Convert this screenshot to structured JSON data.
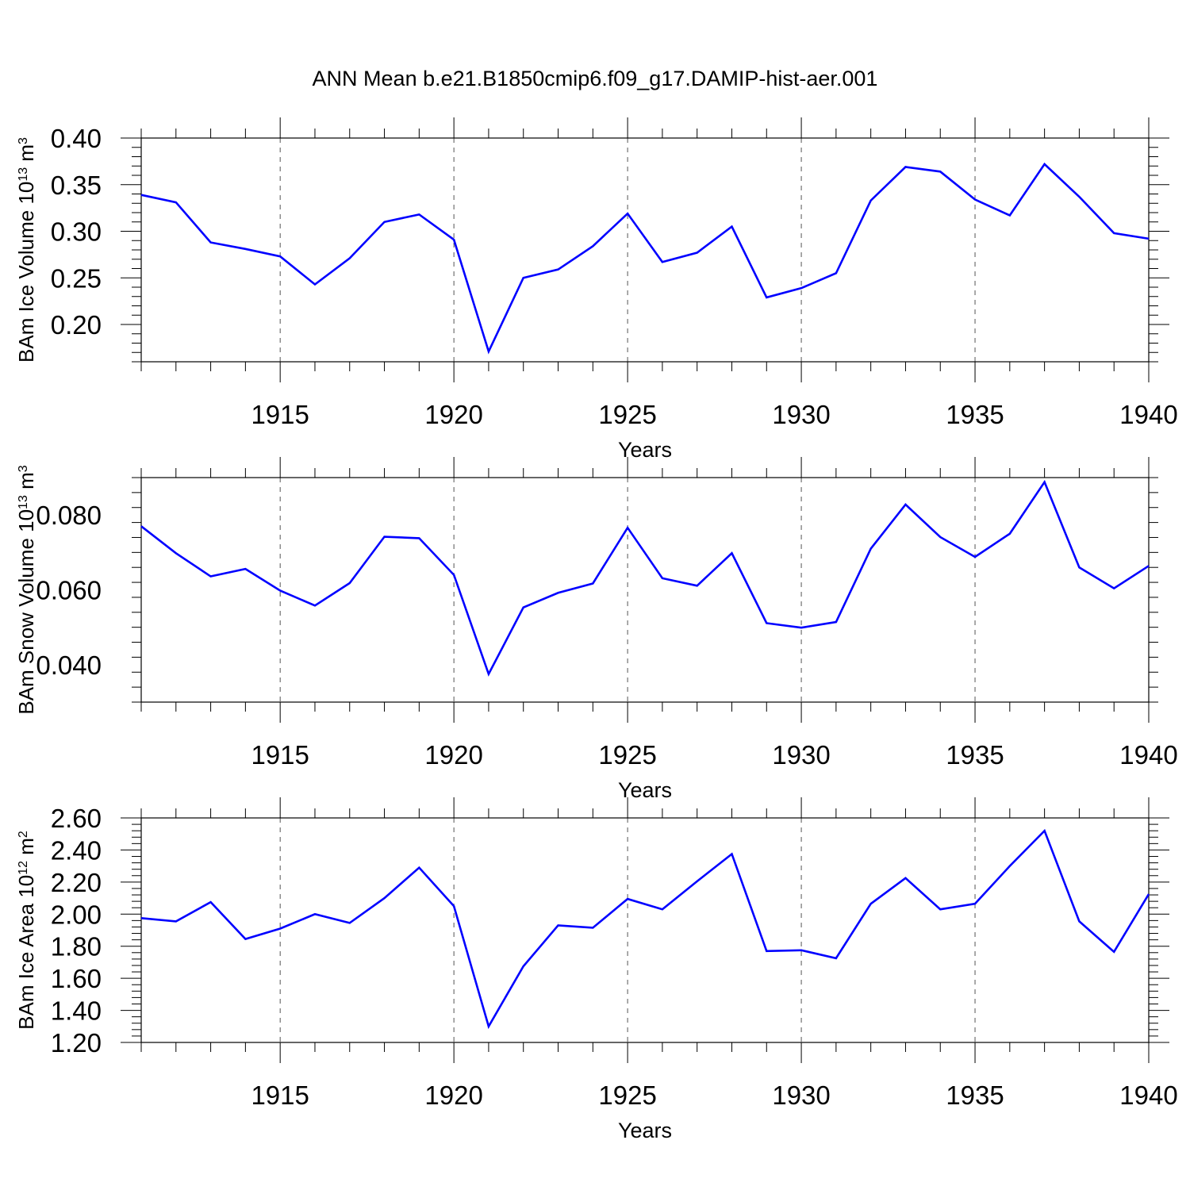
{
  "title": "ANN Mean b.e21.B1850cmip6.f09_g17.DAMIP-hist-aer.001",
  "colors": {
    "series": "#0000ff",
    "axis": "#000000",
    "grid": "#555555"
  },
  "chart_data": [
    {
      "type": "line",
      "ylabel_main": "BAm Ice Volume 10",
      "ylabel_exp": "13",
      "ylabel_unit": " m",
      "ylabel_unit_exp": "3",
      "xlabel": "Years",
      "xlim": [
        1911,
        1940
      ],
      "ylim": [
        0.16,
        0.4
      ],
      "y_ticks": [
        0.2,
        0.25,
        0.3,
        0.35,
        0.4
      ],
      "y_tick_labels": [
        "0.20",
        "0.25",
        "0.30",
        "0.35",
        "0.40"
      ],
      "x_ticks": [
        1915,
        1920,
        1925,
        1930,
        1935,
        1940
      ],
      "x_tick_labels": [
        "1915",
        "1920",
        "1925",
        "1930",
        "1935",
        "1940"
      ],
      "grid": "vertical dashed at major x ticks",
      "x": [
        1911,
        1912,
        1913,
        1914,
        1915,
        1916,
        1917,
        1918,
        1919,
        1920,
        1921,
        1922,
        1923,
        1924,
        1925,
        1926,
        1927,
        1928,
        1929,
        1930,
        1931,
        1932,
        1933,
        1934,
        1935,
        1936,
        1937,
        1938,
        1939,
        1940
      ],
      "values": [
        0.339,
        0.331,
        0.288,
        0.281,
        0.273,
        0.243,
        0.271,
        0.31,
        0.318,
        0.291,
        0.171,
        0.25,
        0.259,
        0.284,
        0.319,
        0.267,
        0.277,
        0.305,
        0.229,
        0.239,
        0.255,
        0.333,
        0.369,
        0.364,
        0.334,
        0.317,
        0.372,
        0.337,
        0.298,
        0.292
      ]
    },
    {
      "type": "line",
      "ylabel_main": "BAm Snow Volume 10",
      "ylabel_exp": "13",
      "ylabel_unit": " m",
      "ylabel_unit_exp": "3",
      "xlabel": "Years",
      "xlim": [
        1911,
        1940
      ],
      "ylim": [
        0.03,
        0.09
      ],
      "y_ticks": [
        0.04,
        0.06,
        0.08
      ],
      "y_tick_labels": [
        "0.040",
        "0.060",
        "0.080"
      ],
      "x_ticks": [
        1915,
        1920,
        1925,
        1930,
        1935,
        1940
      ],
      "x_tick_labels": [
        "1915",
        "1920",
        "1925",
        "1930",
        "1935",
        "1940"
      ],
      "grid": "vertical dashed at major x ticks",
      "x": [
        1911,
        1912,
        1913,
        1914,
        1915,
        1916,
        1917,
        1918,
        1919,
        1920,
        1921,
        1922,
        1923,
        1924,
        1925,
        1926,
        1927,
        1928,
        1929,
        1930,
        1931,
        1932,
        1933,
        1934,
        1935,
        1936,
        1937,
        1938,
        1939,
        1940
      ],
      "values": [
        0.077,
        0.0698,
        0.0636,
        0.0656,
        0.0598,
        0.0558,
        0.0618,
        0.0742,
        0.0738,
        0.064,
        0.0375,
        0.0553,
        0.0592,
        0.0617,
        0.0766,
        0.0631,
        0.0611,
        0.0698,
        0.0511,
        0.0499,
        0.0514,
        0.071,
        0.0828,
        0.0741,
        0.0688,
        0.075,
        0.0888,
        0.066,
        0.0604,
        0.0664
      ]
    },
    {
      "type": "line",
      "ylabel_main": "BAm Ice Area 10",
      "ylabel_exp": "12",
      "ylabel_unit": " m",
      "ylabel_unit_exp": "2",
      "xlabel": "Years",
      "xlim": [
        1911,
        1940
      ],
      "ylim": [
        1.2,
        2.6
      ],
      "y_ticks": [
        1.2,
        1.4,
        1.6,
        1.8,
        2.0,
        2.2,
        2.4,
        2.6
      ],
      "y_tick_labels": [
        "1.20",
        "1.40",
        "1.60",
        "1.80",
        "2.00",
        "2.20",
        "2.40",
        "2.60"
      ],
      "x_ticks": [
        1915,
        1920,
        1925,
        1930,
        1935,
        1940
      ],
      "x_tick_labels": [
        "1915",
        "1920",
        "1925",
        "1930",
        "1935",
        "1940"
      ],
      "grid": "vertical dashed at major x ticks",
      "x": [
        1911,
        1912,
        1913,
        1914,
        1915,
        1916,
        1917,
        1918,
        1919,
        1920,
        1921,
        1922,
        1923,
        1924,
        1925,
        1926,
        1927,
        1928,
        1929,
        1930,
        1931,
        1932,
        1933,
        1934,
        1935,
        1936,
        1937,
        1938,
        1939,
        1940
      ],
      "values": [
        1.975,
        1.955,
        2.075,
        1.845,
        1.91,
        2.0,
        1.945,
        2.1,
        2.29,
        2.05,
        1.3,
        1.675,
        1.93,
        1.915,
        2.095,
        2.03,
        2.205,
        2.375,
        1.77,
        1.775,
        1.725,
        2.065,
        2.225,
        2.03,
        2.065,
        2.3,
        2.52,
        1.955,
        1.765,
        2.125
      ]
    }
  ]
}
